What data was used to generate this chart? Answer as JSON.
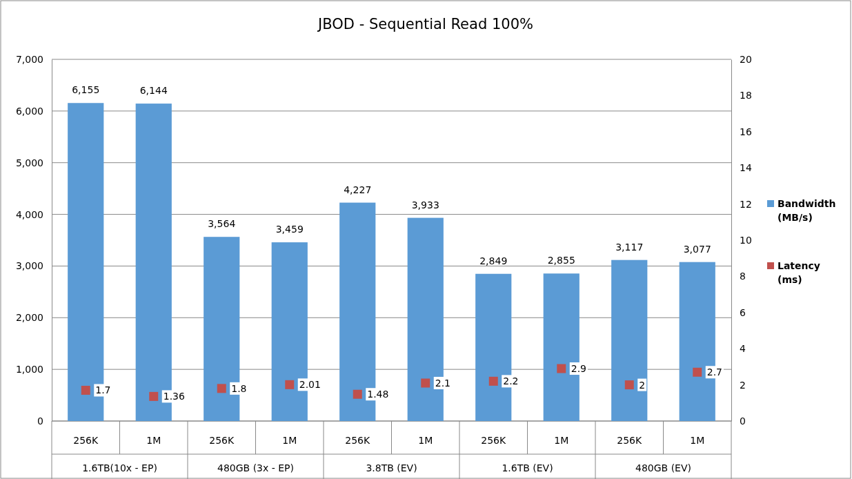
{
  "chart_data": {
    "type": "bar",
    "title": "JBOD - Sequential Read 100%",
    "categories": [
      "256K",
      "1M",
      "256K",
      "1M",
      "256K",
      "1M",
      "256K",
      "1M",
      "256K",
      "1M"
    ],
    "annotations": [
      "1.6TB(10x - EP)",
      "480GB (3x - EP)",
      "3.8TB (EV)",
      "1.6TB (EV)",
      "480GB (EV)"
    ],
    "series": [
      {
        "name": "Bandwidth (MB/s)",
        "color": "#5b9bd5",
        "values": [
          6155,
          6144,
          3564,
          3459,
          4227,
          3933,
          2849,
          2855,
          3117,
          3077
        ],
        "value_labels": [
          "6,155",
          "6,144",
          "3,564",
          "3,459",
          "4,227",
          "3,933",
          "2,849",
          "2,855",
          "3,117",
          "3,077"
        ]
      },
      {
        "name": "Latency (ms)",
        "type": "scatter",
        "axis": "y2",
        "color": "#c0504d",
        "marker": "square",
        "values": [
          1.7,
          1.36,
          1.8,
          2.01,
          1.48,
          2.1,
          2.2,
          2.9,
          2,
          2.7
        ],
        "value_labels": [
          "1.7",
          "1.36",
          "1.8",
          "2.01",
          "1.48",
          "2.1",
          "2.2",
          "2.9",
          "2",
          "2.7"
        ]
      }
    ],
    "ylim": [
      0,
      7000
    ],
    "yticks": [
      {
        "value": 0,
        "label": "0"
      },
      {
        "value": 1000,
        "label": "1,000"
      },
      {
        "value": 2000,
        "label": "2,000"
      },
      {
        "value": 3000,
        "label": "3,000"
      },
      {
        "value": 4000,
        "label": "4,000"
      },
      {
        "value": 5000,
        "label": "5,000"
      },
      {
        "value": 6000,
        "label": "6,000"
      },
      {
        "value": 7000,
        "label": "7,000"
      }
    ],
    "y2lim": [
      0,
      20
    ],
    "y2ticks": [
      0,
      2,
      4,
      6,
      8,
      10,
      12,
      14,
      16,
      18,
      20
    ],
    "grid": "y",
    "legend": "right"
  }
}
